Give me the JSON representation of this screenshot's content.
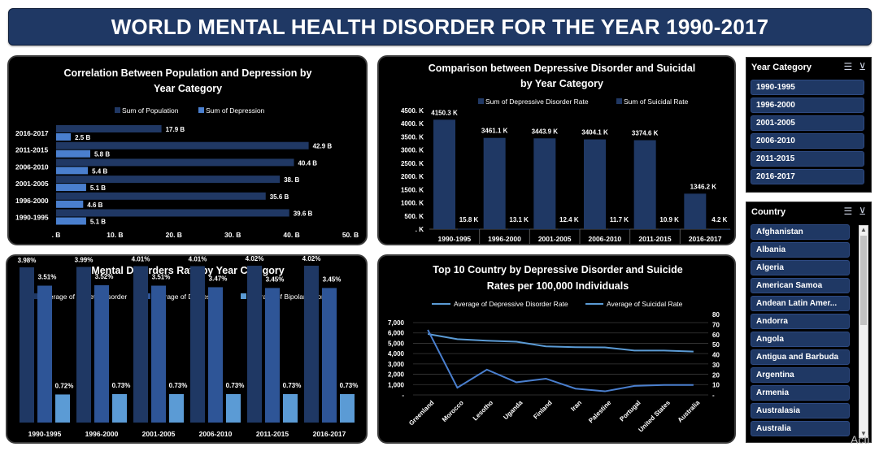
{
  "title": "WORLD MENTAL HEALTH DISORDER FOR THE YEAR 1990-2017",
  "colors": {
    "banner": "#1f3864",
    "dark_series": "#203864",
    "mid_series": "#2e5597",
    "light_series": "#4a7fce",
    "lightest_series": "#5b9bd5"
  },
  "charts": {
    "population_depression": {
      "type": "bar",
      "title_line1": "Correlation Between Population and Depression by",
      "title_line2": "Year Category",
      "legend": [
        "Sum of Population",
        "Sum of Depression"
      ],
      "categories": [
        "2016-2017",
        "2011-2015",
        "2006-2010",
        "2001-2005",
        "1996-2000",
        "1990-1995"
      ],
      "population": [
        17.9,
        42.9,
        40.4,
        38.0,
        35.6,
        39.6
      ],
      "depression": [
        2.5,
        5.8,
        5.4,
        5.1,
        4.6,
        5.1
      ],
      "population_labels": [
        "17.9 B",
        "42.9 B",
        "40.4 B",
        "38. B",
        "35.6 B",
        "39.6 B"
      ],
      "depression_labels": [
        "2.5 B",
        "5.8 B",
        "5.4 B",
        "5.1 B",
        "4.6 B",
        "5.1 B"
      ],
      "xlim": [
        0,
        50
      ],
      "x_ticks": [
        ". B",
        "10. B",
        "20. B",
        "30. B",
        "40. B",
        "50. B"
      ]
    },
    "depressive_suicidal": {
      "type": "bar",
      "title_line1": "Comparison between Depressive Disorder and Suicidal",
      "title_line2": "by Year Category",
      "legend": [
        "Sum of Depressive Disorder Rate",
        "Sum of Suicidal Rate"
      ],
      "categories": [
        "1990-1995",
        "1996-2000",
        "2001-2005",
        "2006-2010",
        "2011-2015",
        "2016-2017"
      ],
      "depressive": [
        4150.3,
        3461.1,
        3443.9,
        3404.1,
        3374.6,
        1346.2
      ],
      "suicidal": [
        15.8,
        13.1,
        12.4,
        11.7,
        10.9,
        4.2
      ],
      "depressive_labels": [
        "4150.3 K",
        "3461.1 K",
        "3443.9 K",
        "3404.1 K",
        "3374.6 K",
        "1346.2 K"
      ],
      "suicidal_labels": [
        "15.8 K",
        "13.1 K",
        "12.4 K",
        "11.7 K",
        "10.9 K",
        "4.2 K"
      ],
      "ylim": [
        0,
        4500
      ],
      "y_ticks": [
        "4500. K",
        "4000. K",
        "3500. K",
        "3000. K",
        "2500. K",
        "2000. K",
        "1500. K",
        "1000. K",
        "500. K",
        ". K"
      ]
    },
    "disorders_rate": {
      "type": "bar",
      "title": "Mental Disorders Rate by Year Category",
      "legend": [
        "Average of Anxiety Disorder",
        "Average of Depression",
        "Average of Bipolar Disorder"
      ],
      "categories": [
        "1990-1995",
        "1996-2000",
        "2001-2005",
        "2006-2010",
        "2011-2015",
        "2016-2017"
      ],
      "anxiety": [
        3.98,
        3.99,
        4.01,
        4.01,
        4.02,
        4.02
      ],
      "depression": [
        3.51,
        3.52,
        3.51,
        3.47,
        3.45,
        3.45
      ],
      "bipolar": [
        0.72,
        0.73,
        0.73,
        0.73,
        0.73,
        0.73
      ],
      "anxiety_labels": [
        "3.98%",
        "3.99%",
        "4.01%",
        "4.01%",
        "4.02%",
        "4.02%"
      ],
      "depression_labels": [
        "3.51%",
        "3.52%",
        "3.51%",
        "3.47%",
        "3.45%",
        "3.45%"
      ],
      "bipolar_labels": [
        "0.72%",
        "0.73%",
        "0.73%",
        "0.73%",
        "0.73%",
        "0.73%"
      ]
    },
    "top10": {
      "type": "line",
      "title_line1": "Top 10 Country by Depressive Disorder and Suicide",
      "title_line2": "Rates per 100,000 Individuals",
      "legend": [
        "Average of Depressive Disorder Rate",
        "Average of Suicidal Rate"
      ],
      "categories": [
        "Greenland",
        "Morocco",
        "Lesotho",
        "Uganda",
        "Finland",
        "Iran",
        "Palestine",
        "Portugal",
        "United States",
        "Australia"
      ],
      "depressive": [
        5900,
        5400,
        5250,
        5150,
        4700,
        4620,
        4600,
        4300,
        4300,
        4200
      ],
      "suicidal": [
        72,
        8,
        28,
        14,
        18,
        7,
        4,
        10,
        11,
        11
      ],
      "left_ticks": [
        "7,000",
        "6,000",
        "5,000",
        "4,000",
        "3,000",
        "2,000",
        "1,000",
        "-"
      ],
      "right_ticks": [
        "80",
        "70",
        "60",
        "50",
        "40",
        "30",
        "20",
        "10",
        "-"
      ],
      "ylim_left": [
        0,
        7000
      ],
      "ylim_right": [
        0,
        80
      ]
    }
  },
  "slicers": {
    "year": {
      "header": "Year Category",
      "items": [
        "1990-1995",
        "1996-2000",
        "2001-2005",
        "2006-2010",
        "2011-2015",
        "2016-2017"
      ]
    },
    "country": {
      "header": "Country",
      "items": [
        "Afghanistan",
        "Albania",
        "Algeria",
        "American Samoa",
        "Andean Latin Amer...",
        "Andorra",
        "Angola",
        "Antigua and Barbuda",
        "Argentina",
        "Armenia",
        "Australasia",
        "Australia"
      ]
    }
  },
  "watermark": "Acti"
}
